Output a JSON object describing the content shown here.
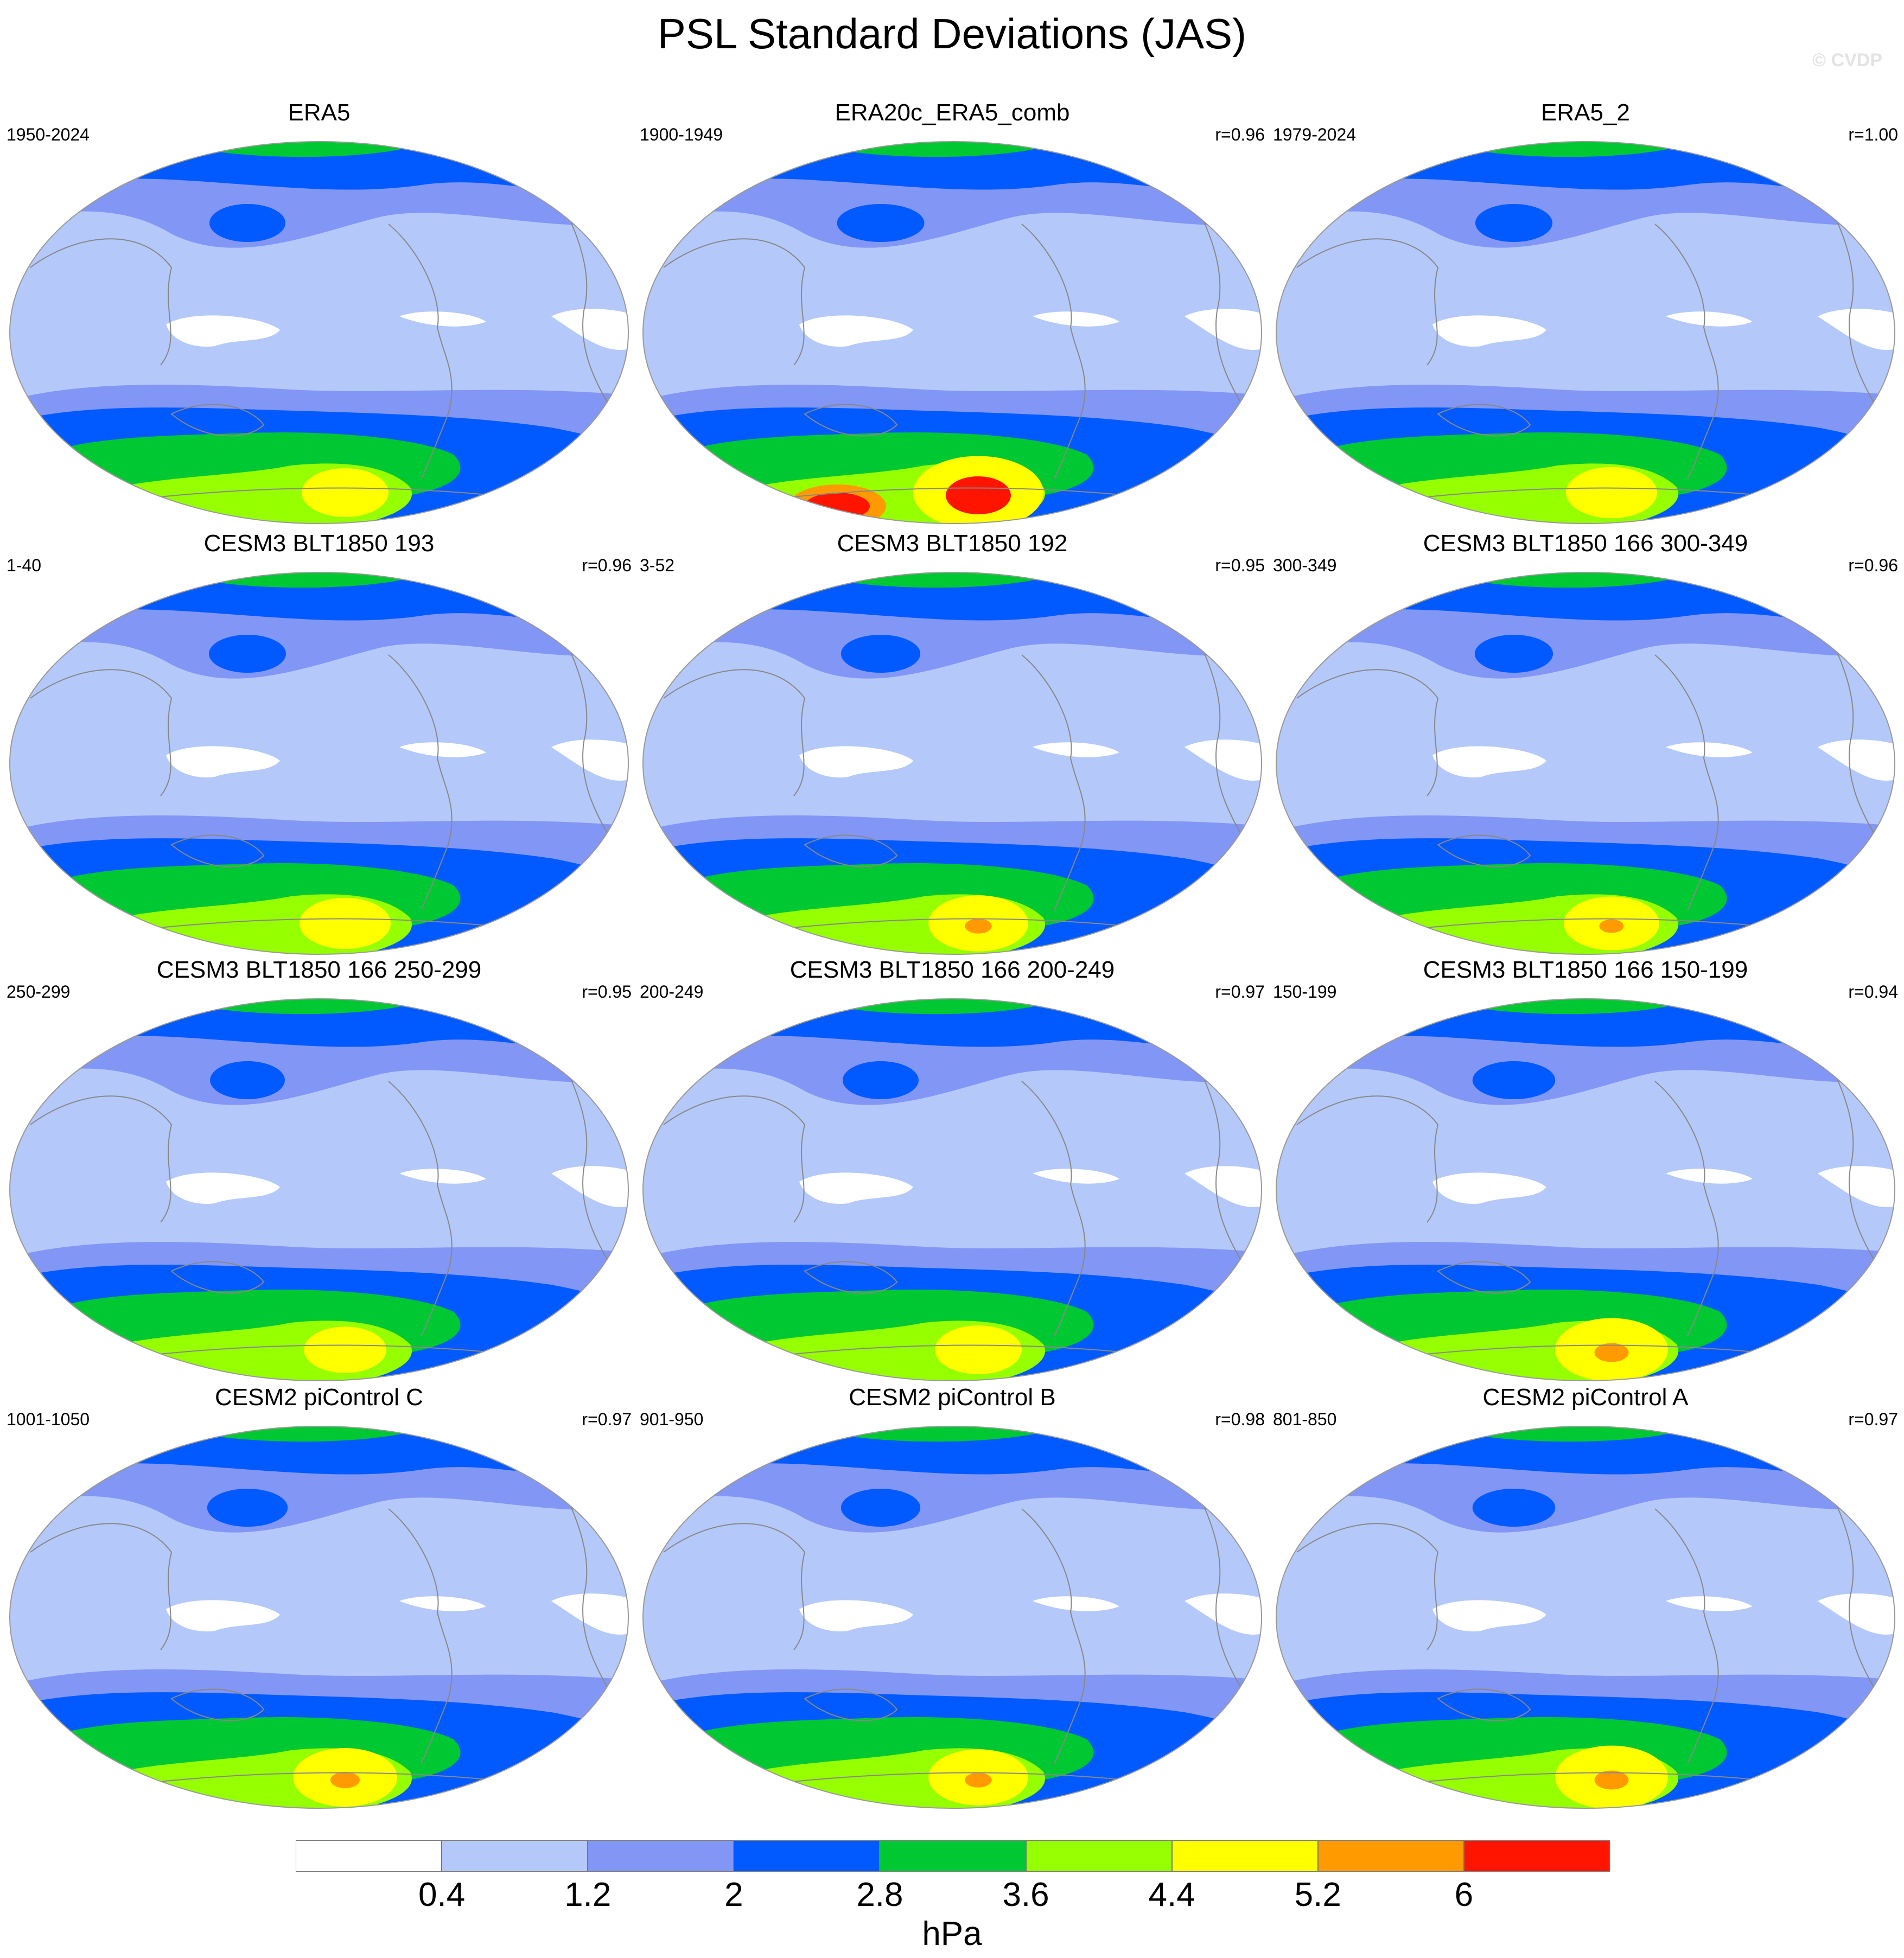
{
  "title": "PSL Standard Deviations (JAS)",
  "watermark": "© CVDP",
  "panels": [
    {
      "title": "ERA5",
      "period": "1950-2024",
      "r": "",
      "intensity": 1.0
    },
    {
      "title": "ERA20c_ERA5_comb",
      "period": "1900-1949",
      "r": "r=0.96",
      "intensity": 1.5
    },
    {
      "title": "ERA5_2",
      "period": "1979-2024",
      "r": "r=1.00",
      "intensity": 1.05
    },
    {
      "title": "CESM3 BLT1850 193",
      "period": "1-40",
      "r": "r=0.96",
      "intensity": 1.05
    },
    {
      "title": "CESM3 BLT1850 192",
      "period": "3-52",
      "r": "r=0.95",
      "intensity": 1.15
    },
    {
      "title": "CESM3 BLT1850 166 300-349",
      "period": "300-349",
      "r": "r=0.96",
      "intensity": 1.1
    },
    {
      "title": "CESM3 BLT1850 166 250-299",
      "period": "250-299",
      "r": "r=0.95",
      "intensity": 0.95
    },
    {
      "title": "CESM3 BLT1850 166 200-249",
      "period": "200-249",
      "r": "r=0.97",
      "intensity": 1.0
    },
    {
      "title": "CESM3 BLT1850 166 150-199",
      "period": "150-199",
      "r": "r=0.94",
      "intensity": 1.3
    },
    {
      "title": "CESM2 piControl C",
      "period": "1001-1050",
      "r": "r=0.97",
      "intensity": 1.2
    },
    {
      "title": "CESM2 piControl B",
      "period": "901-950",
      "r": "r=0.98",
      "intensity": 1.15
    },
    {
      "title": "CESM2 piControl A",
      "period": "801-850",
      "r": "r=0.97",
      "intensity": 1.3
    }
  ],
  "colorbar": {
    "levels": [
      "0.4",
      "1.2",
      "2",
      "2.8",
      "3.6",
      "4.4",
      "5.2",
      "6"
    ],
    "colors": [
      "#ffffff",
      "#b4c8fa",
      "#8296f5",
      "#005aff",
      "#00c832",
      "#96ff00",
      "#ffff00",
      "#ff9b00",
      "#ff1400"
    ],
    "units": "hPa"
  }
}
